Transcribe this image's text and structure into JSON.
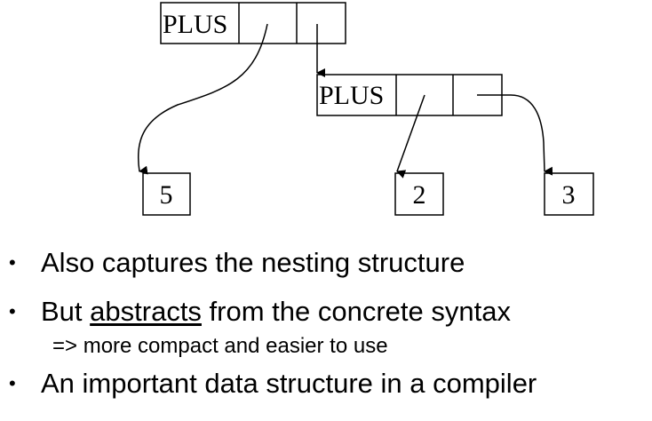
{
  "diagram": {
    "root": {
      "label": "PLUS"
    },
    "inner": {
      "label": "PLUS"
    },
    "leaves": [
      "5",
      "2",
      "3"
    ]
  },
  "bullets": {
    "item1": "Also captures the nesting structure",
    "item2_prefix": "But ",
    "item2_underlined": "abstracts",
    "item2_suffix": " from the concrete syntax",
    "item2_sub": "=> more compact and easier to use",
    "item3": "An important data structure in a compiler"
  }
}
